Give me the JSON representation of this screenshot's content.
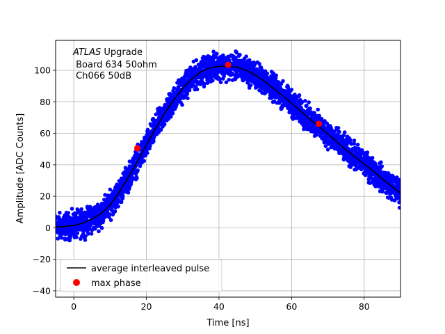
{
  "chart_data": {
    "type": "scatter",
    "title": "",
    "xlabel": "Time [ns]",
    "ylabel": "Amplitude [ADC Counts]",
    "xlim": [
      -5,
      90
    ],
    "ylim": [
      -44,
      119
    ],
    "xticks": [
      0,
      20,
      40,
      60,
      80
    ],
    "yticks": [
      -40,
      -20,
      0,
      20,
      40,
      60,
      80,
      100
    ],
    "grid": true,
    "legend_position": "bottom-left",
    "annotation": {
      "line1_italic": "ATLAS",
      "line1_rest": " Upgrade",
      "line2": " Board 634 50ohm",
      "line3": " Ch066 50dB"
    },
    "scatter_color": "#0000ff",
    "series": [
      {
        "name": "average interleaved pulse",
        "kind": "line",
        "color": "#000000",
        "x": [
          -5,
          -2.5,
          0,
          2.5,
          5,
          7.5,
          10,
          12.5,
          15,
          17.5,
          20,
          22.5,
          25,
          27.5,
          30,
          32.5,
          35,
          37.5,
          40,
          42.5,
          45,
          47.5,
          50,
          52.5,
          55,
          57.5,
          60,
          62.5,
          65,
          67.5,
          70,
          72.5,
          75,
          77.5,
          80,
          82.5,
          85,
          87.5,
          90
        ],
        "y": [
          0.5,
          0.8,
          1.5,
          3.0,
          5.5,
          9.0,
          14.5,
          22.5,
          32.0,
          42.0,
          52.5,
          63.0,
          72.5,
          81.0,
          88.5,
          94.5,
          99.0,
          101.5,
          102.5,
          102.5,
          102.0,
          100.0,
          97.0,
          93.0,
          88.5,
          84.0,
          79.0,
          74.0,
          69.0,
          64.5,
          59.5,
          54.5,
          49.5,
          45.0,
          40.5,
          36.0,
          31.0,
          26.5,
          22.0
        ]
      },
      {
        "name": "max phase",
        "kind": "scatter",
        "color": "#ff0000",
        "x": [
          17.5,
          42.5,
          67.5
        ],
        "y": [
          50.5,
          103.5,
          66.0
        ]
      }
    ],
    "samples_per_ns": 8,
    "samples_per_point": 4,
    "noise_amplitude": 6
  }
}
